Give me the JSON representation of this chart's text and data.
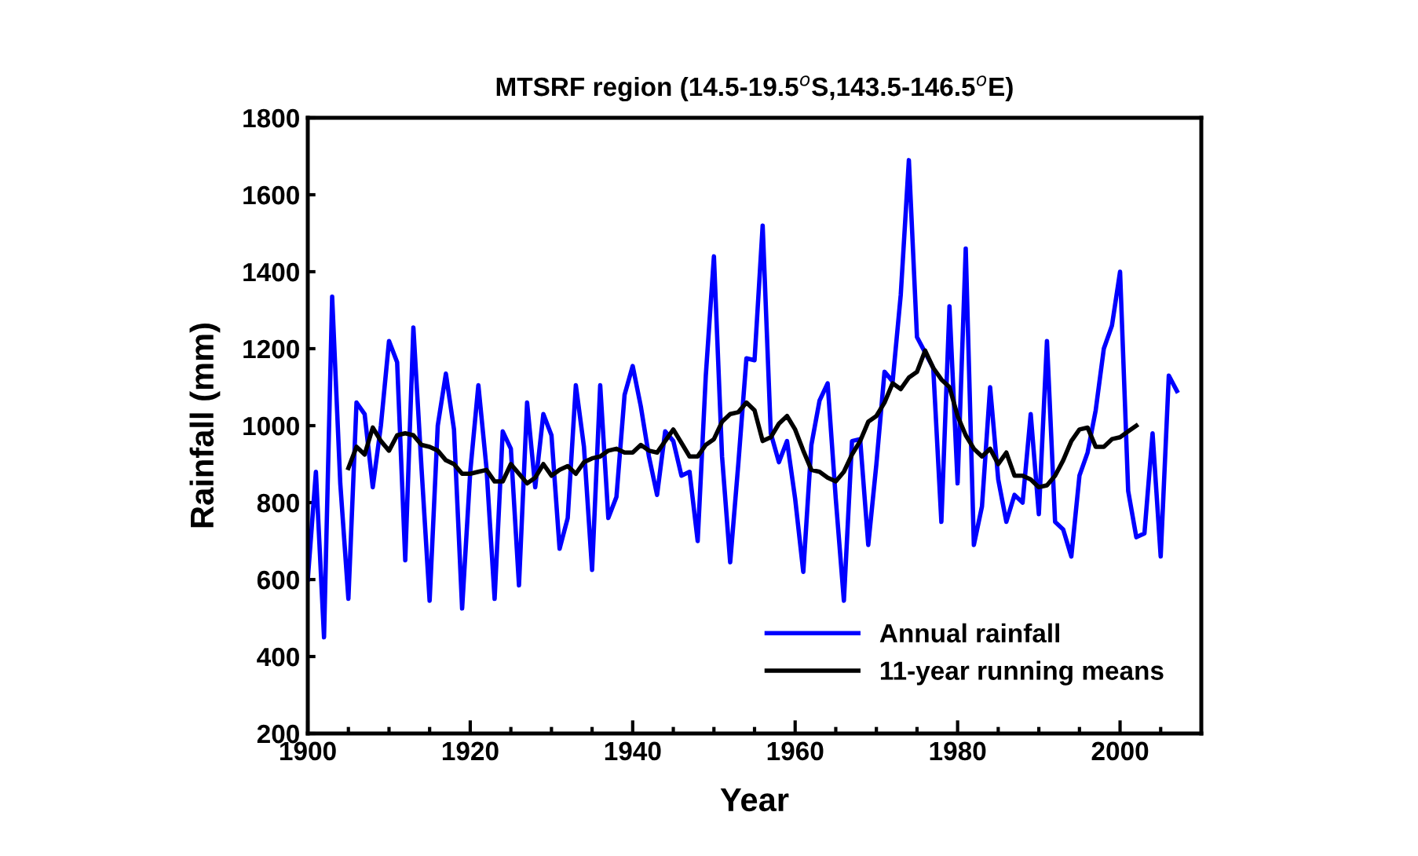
{
  "chart_data": {
    "type": "line",
    "title": "MTSRF region (14.5-19.5$^{o}$S,143.5-146.5$^{o}$E)",
    "xlabel": "Year",
    "ylabel": "Rainfall (mm)",
    "xlim": [
      1900,
      2010
    ],
    "ylim": [
      200,
      1800
    ],
    "xticks": [
      1900,
      {
        "value": 1905,
        "label": null
      },
      {
        "value": 1910,
        "label": null
      },
      {
        "value": 1915,
        "label": null
      },
      1920,
      {
        "value": 1925,
        "label": null
      },
      {
        "value": 1930,
        "label": null
      },
      {
        "value": 1935,
        "label": null
      },
      1940,
      {
        "value": 1945,
        "label": null
      },
      {
        "value": 1950,
        "label": null
      },
      {
        "value": 1955,
        "label": null
      },
      1960,
      {
        "value": 1965,
        "label": null
      },
      {
        "value": 1970,
        "label": null
      },
      {
        "value": 1975,
        "label": null
      },
      1980,
      {
        "value": 1985,
        "label": null
      },
      {
        "value": 1990,
        "label": null
      },
      {
        "value": 1995,
        "label": null
      },
      2000,
      {
        "value": 2005,
        "label": null
      }
    ],
    "yticks": [
      200,
      400,
      600,
      800,
      1000,
      1200,
      1400,
      1600,
      1800
    ],
    "grid": false,
    "legend": "bottom right",
    "marker": "none",
    "line_style": "solid",
    "series": [
      {
        "name": "Annual rainfall",
        "color": "#0000ff",
        "x": [
          1900,
          1901,
          1902,
          1903,
          1904,
          1905,
          1906,
          1907,
          1908,
          1909,
          1910,
          1911,
          1912,
          1913,
          1914,
          1915,
          1916,
          1917,
          1918,
          1919,
          1920,
          1921,
          1922,
          1923,
          1924,
          1925,
          1926,
          1927,
          1928,
          1929,
          1930,
          1931,
          1932,
          1933,
          1934,
          1935,
          1936,
          1937,
          1938,
          1939,
          1940,
          1941,
          1942,
          1943,
          1944,
          1945,
          1946,
          1947,
          1948,
          1949,
          1950,
          1951,
          1952,
          1953,
          1954,
          1955,
          1956,
          1957,
          1958,
          1959,
          1960,
          1961,
          1962,
          1963,
          1964,
          1965,
          1966,
          1967,
          1968,
          1969,
          1970,
          1971,
          1972,
          1973,
          1974,
          1975,
          1976,
          1977,
          1978,
          1979,
          1980,
          1981,
          1982,
          1983,
          1984,
          1985,
          1986,
          1987,
          1988,
          1989,
          1990,
          1991,
          1992,
          1993,
          1994,
          1995,
          1996,
          1997,
          1998,
          1999,
          2000,
          2001,
          2002,
          2003,
          2004,
          2005,
          2006,
          2007
        ],
        "values": [
          600,
          880,
          450,
          1335,
          850,
          550,
          1060,
          1030,
          840,
          1000,
          1220,
          1165,
          650,
          1255,
          890,
          545,
          1000,
          1135,
          990,
          525,
          880,
          1105,
          890,
          550,
          985,
          940,
          585,
          1060,
          840,
          1030,
          975,
          680,
          760,
          1105,
          945,
          625,
          1105,
          760,
          815,
          1080,
          1155,
          1050,
          920,
          820,
          985,
          960,
          870,
          880,
          700,
          1130,
          1440,
          920,
          645,
          900,
          1175,
          1170,
          1520,
          980,
          905,
          960,
          810,
          620,
          950,
          1065,
          1110,
          810,
          545,
          960,
          965,
          690,
          900,
          1140,
          1115,
          1340,
          1690,
          1230,
          1190,
          1150,
          750,
          1310,
          850,
          1460,
          690,
          790,
          1100,
          860,
          750,
          820,
          800,
          1030,
          770,
          1220,
          750,
          730,
          660,
          870,
          930,
          1040,
          1200,
          1260,
          1400,
          830,
          710,
          720,
          980,
          660,
          1130,
          1090
        ]
      },
      {
        "name": "11-year running means",
        "color": "#000000",
        "x": [
          1905,
          1906,
          1907,
          1908,
          1909,
          1910,
          1911,
          1912,
          1913,
          1914,
          1915,
          1916,
          1917,
          1918,
          1919,
          1920,
          1921,
          1922,
          1923,
          1924,
          1925,
          1926,
          1927,
          1928,
          1929,
          1930,
          1931,
          1932,
          1933,
          1934,
          1935,
          1936,
          1937,
          1938,
          1939,
          1940,
          1941,
          1942,
          1943,
          1944,
          1945,
          1946,
          1947,
          1948,
          1949,
          1950,
          1951,
          1952,
          1953,
          1954,
          1955,
          1956,
          1957,
          1958,
          1959,
          1960,
          1961,
          1962,
          1963,
          1964,
          1965,
          1966,
          1967,
          1968,
          1969,
          1970,
          1971,
          1972,
          1973,
          1974,
          1975,
          1976,
          1977,
          1978,
          1979,
          1980,
          1981,
          1982,
          1983,
          1984,
          1985,
          1986,
          1987,
          1988,
          1989,
          1990,
          1991,
          1992,
          1993,
          1994,
          1995,
          1996,
          1997,
          1998,
          1999,
          2000,
          2001,
          2002
        ],
        "values": [
          890,
          945,
          925,
          995,
          960,
          935,
          975,
          980,
          975,
          950,
          945,
          935,
          910,
          900,
          875,
          875,
          880,
          885,
          855,
          855,
          900,
          875,
          850,
          865,
          900,
          870,
          885,
          895,
          875,
          905,
          915,
          920,
          935,
          940,
          930,
          930,
          950,
          935,
          930,
          960,
          990,
          955,
          920,
          920,
          950,
          965,
          1010,
          1030,
          1035,
          1060,
          1040,
          960,
          970,
          1005,
          1025,
          990,
          935,
          885,
          880,
          865,
          855,
          880,
          925,
          960,
          1010,
          1025,
          1060,
          1110,
          1095,
          1125,
          1140,
          1195,
          1150,
          1120,
          1100,
          1025,
          975,
          940,
          920,
          940,
          900,
          930,
          870,
          870,
          860,
          840,
          845,
          870,
          910,
          960,
          990,
          995,
          945,
          945,
          965,
          970,
          985,
          1000
        ]
      }
    ]
  }
}
